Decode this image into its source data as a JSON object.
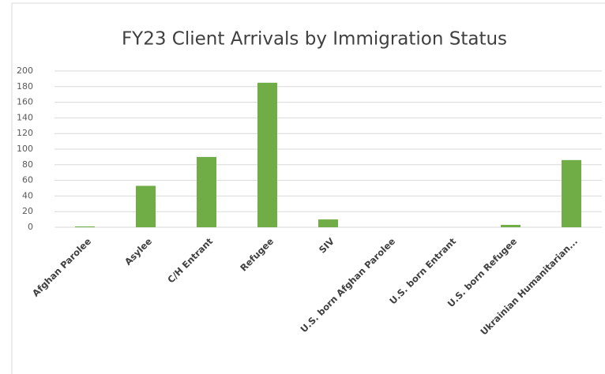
{
  "chart_data": {
    "type": "bar",
    "title": "FY23 Client Arrivals by Immigration Status",
    "categories": [
      "Afghan Parolee",
      "Asylee",
      "C/H Entrant",
      "Refugee",
      "SIV",
      "U.S. born Afghan Parolee",
      "U.S. born Entrant",
      "U.S. born Refugee",
      "Ukrainian Humanitarian..."
    ],
    "values": [
      1,
      53,
      90,
      185,
      10,
      0,
      0,
      3,
      86
    ],
    "color": "#70ad47",
    "ylim": [
      0,
      200
    ],
    "yticks": [
      0,
      20,
      40,
      60,
      80,
      100,
      120,
      140,
      160,
      180,
      200
    ],
    "grid": true
  }
}
